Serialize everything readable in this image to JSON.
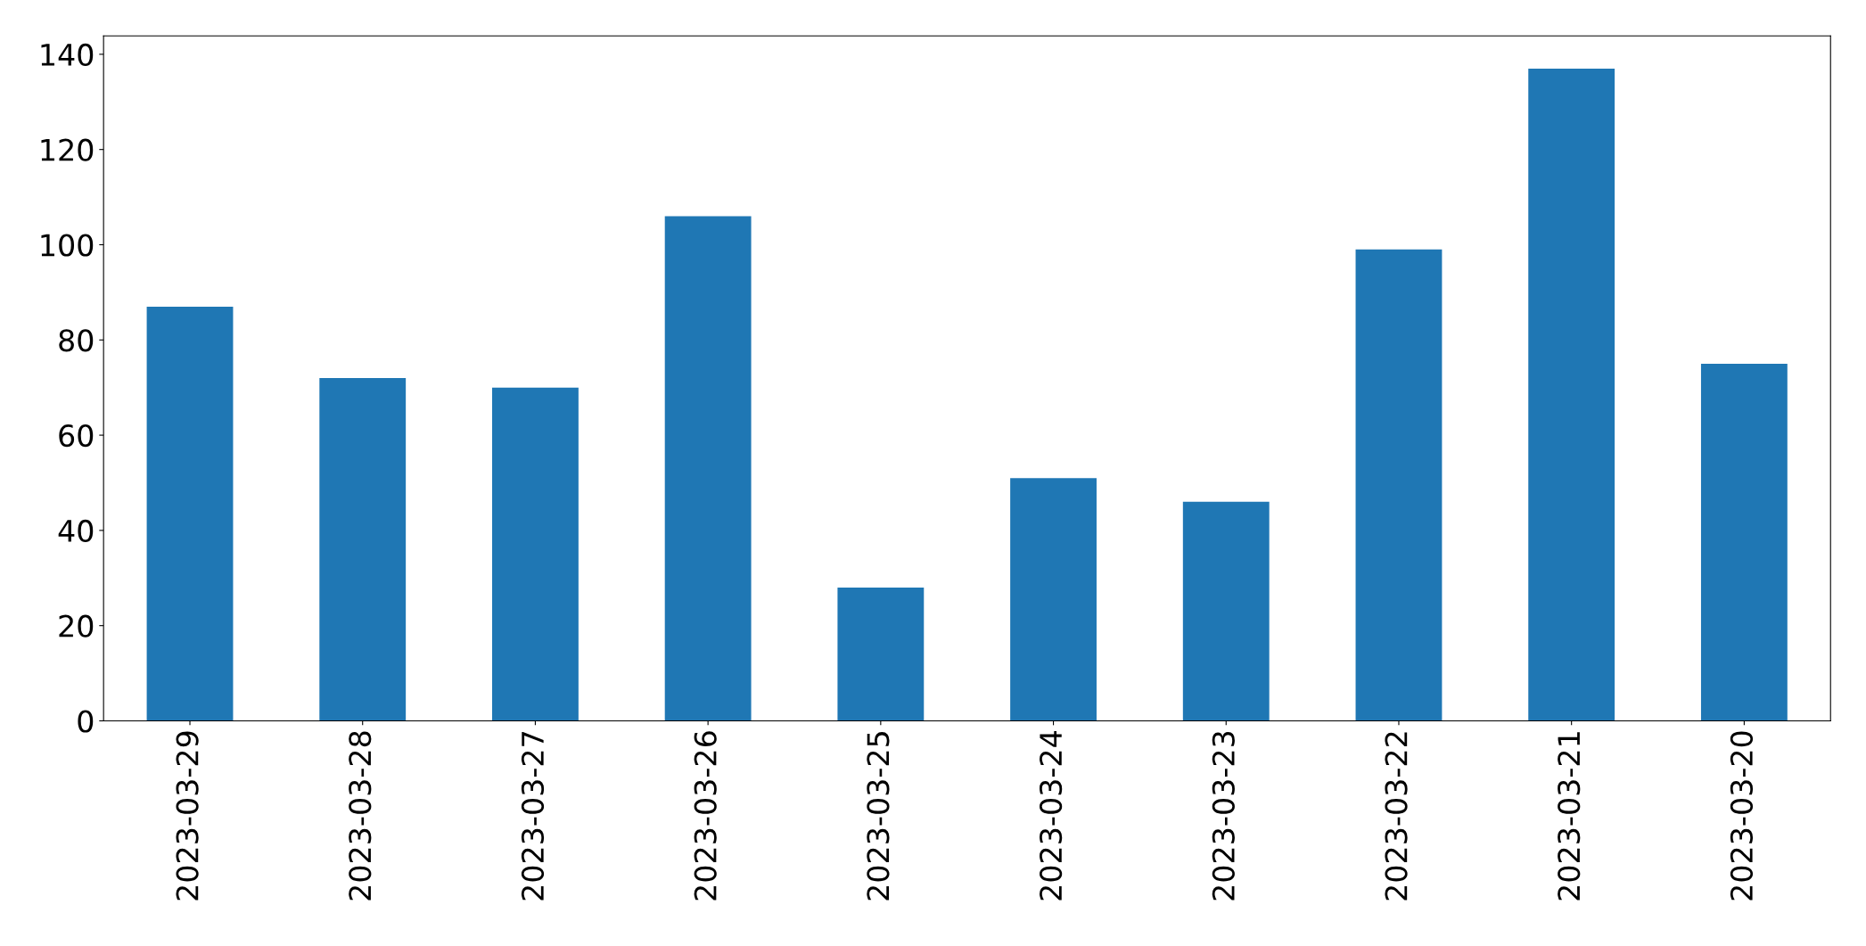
{
  "chart_data": {
    "type": "bar",
    "categories": [
      "2023-03-29",
      "2023-03-28",
      "2023-03-27",
      "2023-03-26",
      "2023-03-25",
      "2023-03-24",
      "2023-03-23",
      "2023-03-22",
      "2023-03-21",
      "2023-03-20"
    ],
    "values": [
      87,
      72,
      70,
      106,
      28,
      51,
      46,
      99,
      137,
      75
    ],
    "color": "#1f77b4",
    "ylim": [
      0,
      143.85
    ],
    "yticks": [
      0,
      20,
      40,
      60,
      80,
      100,
      120,
      140
    ],
    "grid": false,
    "legend": false
  }
}
